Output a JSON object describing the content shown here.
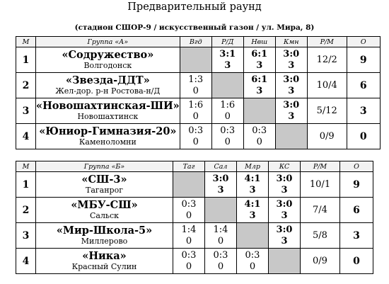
{
  "title": "Предварительный раунд",
  "subtitle": "(стадион СШОР-9 / искусственный газон / ул. Мира, 8)",
  "groups": [
    {
      "header": {
        "place": "М",
        "group": "Группа «А»",
        "opponents": [
          "Вгд",
          "Р/Д",
          "Нвш",
          "Кмн"
        ],
        "rm": "Р/М",
        "pts": "О"
      },
      "rows": [
        {
          "place": "1",
          "name": "«Содружество»",
          "city": "Волгодонск",
          "cells": [
            {
              "self": true
            },
            {
              "score": "3:1",
              "pts": "3",
              "win": true
            },
            {
              "score": "6:1",
              "pts": "3",
              "win": true
            },
            {
              "score": "3:0",
              "pts": "3",
              "win": true
            }
          ],
          "rm": "12/2",
          "points": "9"
        },
        {
          "place": "2",
          "name": "«Звезда-ДДТ»",
          "city": "Жел-дор. р-н Ростова-н/Д",
          "cells": [
            {
              "score": "1:3",
              "pts": "0"
            },
            {
              "self": true
            },
            {
              "score": "6:1",
              "pts": "3",
              "win": true
            },
            {
              "score": "3:0",
              "pts": "3",
              "win": true
            }
          ],
          "rm": "10/4",
          "points": "6"
        },
        {
          "place": "3",
          "name": "«Новошахтинская-ШИ»",
          "city": "Новошахтинск",
          "cells": [
            {
              "score": "1:6",
              "pts": "0"
            },
            {
              "score": "1:6",
              "pts": "0"
            },
            {
              "self": true
            },
            {
              "score": "3:0",
              "pts": "3",
              "win": true
            }
          ],
          "rm": "5/12",
          "points": "3"
        },
        {
          "place": "4",
          "name": "«Юниор-Гимназия-20»",
          "city": "Каменоломни",
          "cells": [
            {
              "score": "0:3",
              "pts": "0"
            },
            {
              "score": "0:3",
              "pts": "0"
            },
            {
              "score": "0:3",
              "pts": "0"
            },
            {
              "self": true
            }
          ],
          "rm": "0/9",
          "points": "0"
        }
      ]
    },
    {
      "header": {
        "place": "М",
        "group": "Группа «Б»",
        "opponents": [
          "Таг",
          "Сал",
          "Млр",
          "КС"
        ],
        "rm": "Р/М",
        "pts": "О"
      },
      "rows": [
        {
          "place": "1",
          "name": "«СШ-3»",
          "city": "Таганрог",
          "cells": [
            {
              "self": true
            },
            {
              "score": "3:0",
              "pts": "3",
              "win": true
            },
            {
              "score": "4:1",
              "pts": "3",
              "win": true
            },
            {
              "score": "3:0",
              "pts": "3",
              "win": true
            }
          ],
          "rm": "10/1",
          "points": "9"
        },
        {
          "place": "2",
          "name": "«МБУ-СШ»",
          "city": "Сальск",
          "cells": [
            {
              "score": "0:3",
              "pts": "0"
            },
            {
              "self": true
            },
            {
              "score": "4:1",
              "pts": "3",
              "win": true
            },
            {
              "score": "3:0",
              "pts": "3",
              "win": true
            }
          ],
          "rm": "7/4",
          "points": "6"
        },
        {
          "place": "3",
          "name": "«Мир-Школа-5»",
          "city": "Миллерово",
          "cells": [
            {
              "score": "1:4",
              "pts": "0"
            },
            {
              "score": "1:4",
              "pts": "0"
            },
            {
              "self": true
            },
            {
              "score": "3:0",
              "pts": "3",
              "win": true
            }
          ],
          "rm": "5/8",
          "points": "3"
        },
        {
          "place": "4",
          "name": "«Ника»",
          "city": "Красный Сулин",
          "cells": [
            {
              "score": "0:3",
              "pts": "0"
            },
            {
              "score": "0:3",
              "pts": "0"
            },
            {
              "score": "0:3",
              "pts": "0"
            },
            {
              "self": true
            }
          ],
          "rm": "0/9",
          "points": "0"
        }
      ]
    }
  ]
}
